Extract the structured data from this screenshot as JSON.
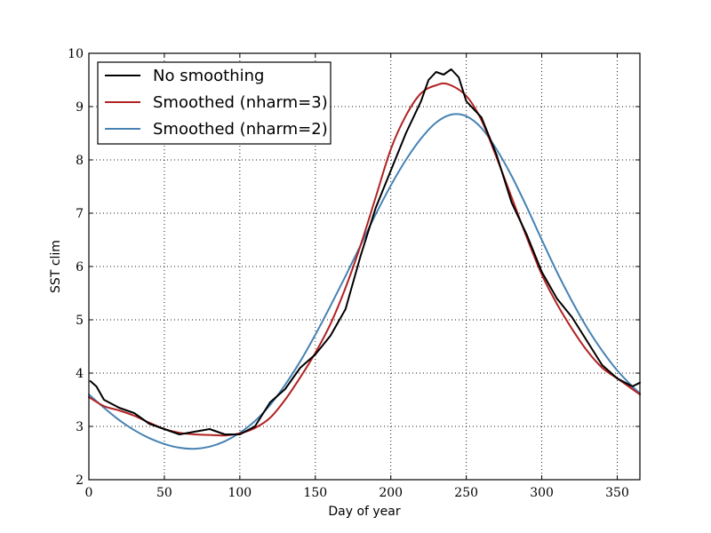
{
  "chart_data": {
    "type": "line",
    "xlabel": "Day of year",
    "ylabel": "SST clim",
    "xlim": [
      0,
      365
    ],
    "ylim": [
      2,
      10
    ],
    "xticks": [
      0,
      50,
      100,
      150,
      200,
      250,
      300,
      350
    ],
    "yticks": [
      2,
      3,
      4,
      5,
      6,
      7,
      8,
      9,
      10
    ],
    "grid": true,
    "legend_position": "top-left",
    "series": [
      {
        "name": "No smoothing",
        "color": "#000000",
        "x": [
          1,
          5,
          10,
          20,
          30,
          40,
          50,
          60,
          70,
          80,
          90,
          100,
          110,
          120,
          130,
          140,
          150,
          160,
          170,
          180,
          190,
          200,
          210,
          220,
          225,
          230,
          235,
          240,
          245,
          250,
          260,
          270,
          280,
          290,
          300,
          310,
          320,
          330,
          340,
          350,
          360,
          365
        ],
        "y": [
          3.85,
          3.75,
          3.5,
          3.35,
          3.25,
          3.05,
          2.95,
          2.85,
          2.9,
          2.95,
          2.85,
          2.85,
          3.0,
          3.45,
          3.7,
          4.1,
          4.35,
          4.7,
          5.2,
          6.2,
          7.1,
          7.8,
          8.5,
          9.1,
          9.5,
          9.65,
          9.6,
          9.7,
          9.55,
          9.1,
          8.8,
          8.1,
          7.2,
          6.6,
          5.9,
          5.4,
          5.05,
          4.6,
          4.15,
          3.9,
          3.75,
          3.82
        ]
      },
      {
        "name": "Smoothed (nharm=3)",
        "color": "#b22222",
        "x": [
          0,
          10,
          20,
          30,
          40,
          50,
          60,
          70,
          80,
          90,
          100,
          110,
          120,
          130,
          140,
          150,
          160,
          170,
          180,
          190,
          200,
          210,
          220,
          230,
          238,
          250,
          260,
          270,
          280,
          290,
          300,
          310,
          320,
          330,
          340,
          350,
          360,
          365
        ],
        "y": [
          3.55,
          3.38,
          3.3,
          3.2,
          3.07,
          2.95,
          2.88,
          2.85,
          2.84,
          2.83,
          2.87,
          2.97,
          3.16,
          3.5,
          3.92,
          4.38,
          4.92,
          5.6,
          6.4,
          7.3,
          8.2,
          8.83,
          9.25,
          9.4,
          9.42,
          9.2,
          8.75,
          8.05,
          7.3,
          6.55,
          5.85,
          5.3,
          4.83,
          4.42,
          4.1,
          3.9,
          3.7,
          3.6
        ]
      },
      {
        "name": "Smoothed (nharm=2)",
        "color": "#4682b4",
        "x": [
          0,
          10,
          20,
          30,
          40,
          50,
          60,
          70,
          80,
          90,
          100,
          110,
          120,
          130,
          140,
          150,
          160,
          170,
          180,
          190,
          200,
          210,
          220,
          230,
          240,
          250,
          260,
          270,
          280,
          290,
          300,
          310,
          320,
          330,
          340,
          350,
          360,
          365
        ],
        "y": [
          3.6,
          3.35,
          3.12,
          2.93,
          2.78,
          2.67,
          2.6,
          2.58,
          2.62,
          2.72,
          2.88,
          3.1,
          3.4,
          3.78,
          4.22,
          4.72,
          5.26,
          5.82,
          6.4,
          6.98,
          7.52,
          8.0,
          8.4,
          8.7,
          8.85,
          8.82,
          8.6,
          8.2,
          7.7,
          7.12,
          6.5,
          5.9,
          5.35,
          4.85,
          4.42,
          4.05,
          3.75,
          3.62
        ]
      }
    ]
  }
}
